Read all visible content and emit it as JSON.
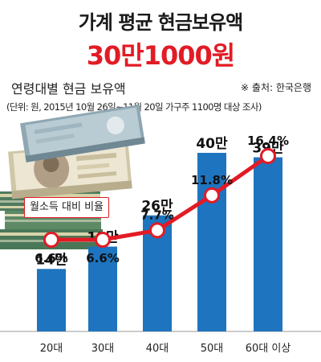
{
  "header": {
    "title": "가계 평균 현금보유액",
    "subtitle": "30만1000원"
  },
  "section_title": "연령대별 현금 보유액",
  "source": "※ 출처: 한국은행",
  "note": "(단위: 원, 2015년 10월 26일~11월 20일 가구주 1100명 대상 조사)",
  "legend_label": "월소득 대비 비율",
  "colors": {
    "bar": "#1e74bf",
    "line": "#e21b25",
    "title": "#1a1a1a",
    "accent": "#e21b25"
  },
  "chart_data": [
    {
      "type": "bar",
      "categories": [
        "20대",
        "30대",
        "40대",
        "50대",
        "60대 이상"
      ],
      "values": [
        14,
        19,
        26,
        40,
        39
      ],
      "value_labels": [
        "14만",
        "19만",
        "26만",
        "40만",
        "39만"
      ],
      "ylim": [
        0,
        45
      ]
    },
    {
      "type": "line",
      "categories": [
        "20대",
        "30대",
        "40대",
        "50대",
        "60대 이상"
      ],
      "series": [
        {
          "name": "월소득 대비 비율",
          "values": [
            6.6,
            6.6,
            7.7,
            11.8,
            16.4
          ],
          "value_labels": [
            "6.6%",
            "6.6%",
            "7.7%",
            "11.8%",
            "16.4%"
          ]
        }
      ],
      "ylim": [
        5,
        17
      ]
    }
  ]
}
